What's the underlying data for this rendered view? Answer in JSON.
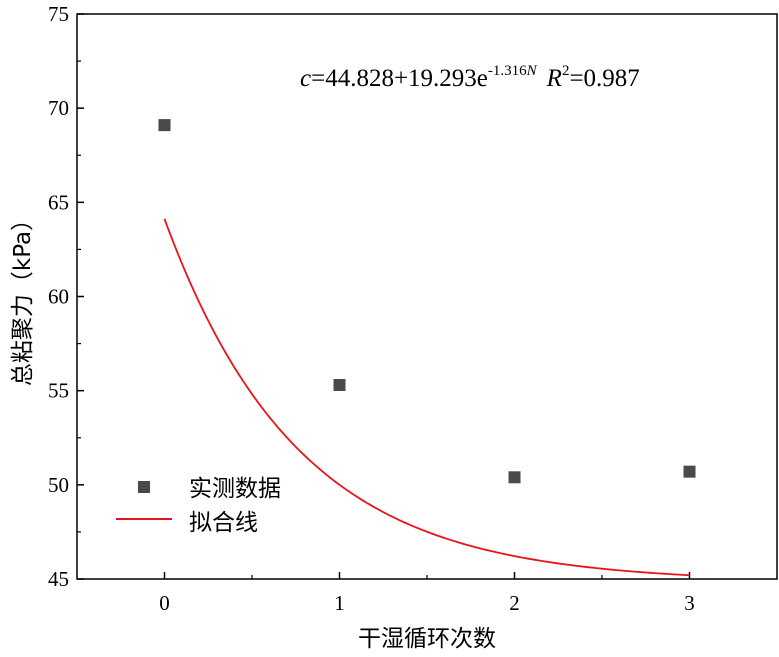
{
  "chart_data": {
    "type": "scatter",
    "xlabel": "干湿循环次数",
    "ylabel": "总粘聚力（kPa）",
    "xlim": [
      -0.5,
      3.5
    ],
    "ylim": [
      45,
      75
    ],
    "xticks": [
      0,
      1,
      2,
      3
    ],
    "yticks": [
      45,
      50,
      55,
      60,
      65,
      70,
      75
    ],
    "grid": false,
    "legend_position": "bottom-left",
    "series": [
      {
        "name": "实测数据",
        "kind": "scatter",
        "marker": "square",
        "color": "#4a4a4a",
        "x": [
          0,
          1,
          2,
          3
        ],
        "y": [
          69.1,
          55.3,
          50.4,
          50.7
        ]
      },
      {
        "name": "拟合线",
        "kind": "line",
        "color": "#e8141b",
        "equation": {
          "a": 44.828,
          "b": 19.293,
          "k": -1.316
        },
        "x_range": [
          0,
          3
        ]
      }
    ],
    "annotation": {
      "var": "c",
      "rhs": "=44.828+19.293e",
      "exp": "-1.316",
      "exp_var": "N",
      "r_var": "R",
      "r_sup": "2",
      "r_val": "=0.987"
    }
  }
}
